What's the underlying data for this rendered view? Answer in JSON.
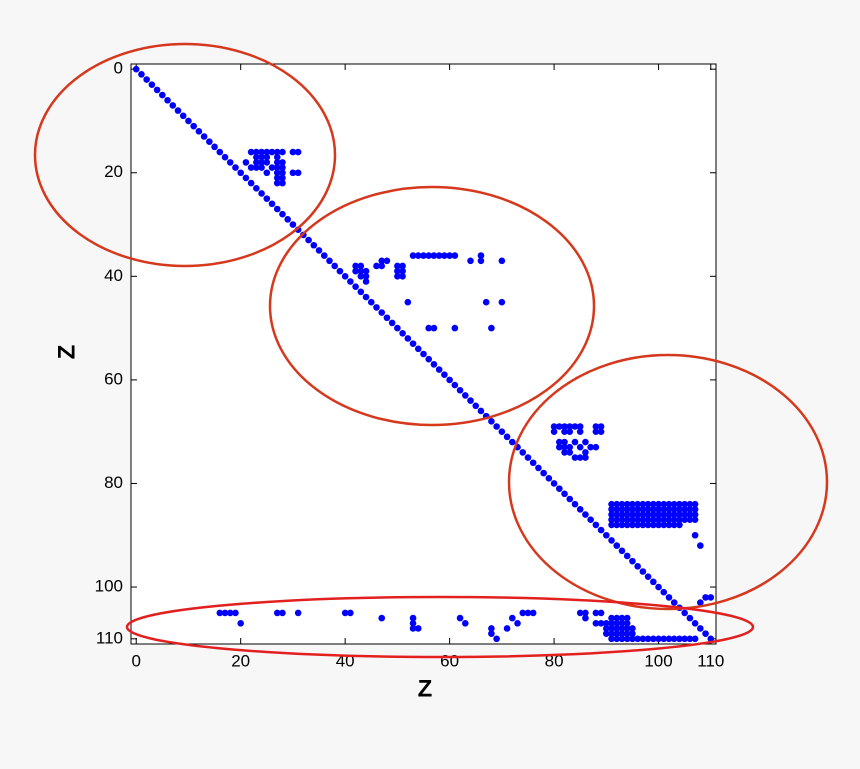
{
  "chart_data": {
    "type": "scatter",
    "xlabel": "Z",
    "ylabel": "Z",
    "color": "#0000ff",
    "xlim": [
      -1,
      111
    ],
    "ylim": [
      -1,
      111
    ],
    "y_reversed": true,
    "xticks": [
      0,
      20,
      40,
      60,
      80,
      100,
      110
    ],
    "yticks": [
      0,
      20,
      40,
      60,
      80,
      100,
      110
    ],
    "x": [
      0,
      1,
      2,
      3,
      4,
      5,
      6,
      7,
      8,
      9,
      10,
      11,
      12,
      13,
      14,
      15,
      16,
      17,
      18,
      19,
      20,
      21,
      22,
      23,
      24,
      25,
      26,
      27,
      28,
      29,
      30,
      31,
      32,
      33,
      34,
      35,
      36,
      37,
      38,
      39,
      40,
      41,
      42,
      43,
      44,
      45,
      46,
      47,
      48,
      49,
      50,
      51,
      52,
      53,
      54,
      55,
      56,
      57,
      58,
      59,
      60,
      61,
      62,
      63,
      64,
      65,
      66,
      67,
      68,
      69,
      70,
      71,
      72,
      73,
      74,
      75,
      76,
      77,
      78,
      79,
      80,
      81,
      82,
      83,
      84,
      85,
      86,
      87,
      88,
      89,
      90,
      91,
      92,
      93,
      94,
      95,
      96,
      97,
      98,
      99,
      100,
      101,
      102,
      103,
      104,
      105,
      106,
      107,
      108,
      109,
      110,
      22,
      23,
      24,
      25,
      26,
      27,
      28,
      30,
      31,
      23,
      24,
      25,
      27,
      21,
      23,
      24,
      25,
      27,
      28,
      22,
      23,
      24,
      26,
      27,
      28,
      25,
      27,
      28,
      30,
      31,
      27,
      28,
      27,
      28,
      53,
      54,
      55,
      56,
      57,
      58,
      59,
      60,
      61,
      66,
      47,
      48,
      64,
      66,
      70,
      42,
      43,
      46,
      47,
      50,
      51,
      42,
      43,
      44,
      50,
      51,
      43,
      44,
      50,
      51,
      44,
      52,
      67,
      70,
      56,
      57,
      61,
      68,
      80,
      81,
      82,
      83,
      84,
      85,
      88,
      89,
      80,
      82,
      83,
      85,
      88,
      89,
      81,
      82,
      84,
      86,
      81,
      82,
      83,
      85,
      87,
      88,
      82,
      83,
      86,
      84,
      85,
      86,
      91,
      92,
      93,
      94,
      95,
      96,
      97,
      98,
      99,
      100,
      101,
      102,
      103,
      104,
      105,
      106,
      107,
      91,
      92,
      93,
      94,
      95,
      96,
      97,
      98,
      99,
      100,
      101,
      102,
      103,
      104,
      105,
      106,
      107,
      91,
      92,
      93,
      94,
      95,
      96,
      97,
      98,
      99,
      100,
      101,
      102,
      103,
      104,
      105,
      106,
      107,
      91,
      92,
      93,
      94,
      95,
      96,
      97,
      98,
      99,
      100,
      101,
      102,
      103,
      104,
      105,
      106,
      107,
      91,
      92,
      93,
      94,
      95,
      96,
      97,
      98,
      99,
      100,
      101,
      102,
      103,
      104,
      107,
      108,
      109,
      110,
      108,
      16,
      17,
      18,
      19,
      27,
      28,
      31,
      40,
      41,
      74,
      75,
      76,
      85,
      86,
      88,
      89,
      47,
      53,
      62,
      72,
      86,
      91,
      92,
      93,
      94,
      20,
      53,
      63,
      73,
      88,
      89,
      90,
      91,
      92,
      93,
      94,
      53,
      54,
      68,
      71,
      90,
      91,
      92,
      93,
      94,
      95,
      68,
      90,
      91,
      92,
      93,
      94,
      95,
      69,
      91,
      92,
      93,
      94,
      95,
      96,
      97,
      98,
      99,
      100,
      101,
      102,
      103,
      104,
      105,
      106,
      107
    ],
    "values": [
      0,
      1,
      2,
      3,
      4,
      5,
      6,
      7,
      8,
      9,
      10,
      11,
      12,
      13,
      14,
      15,
      16,
      17,
      18,
      19,
      20,
      21,
      22,
      23,
      24,
      25,
      26,
      27,
      28,
      29,
      30,
      31,
      32,
      33,
      34,
      35,
      36,
      37,
      38,
      39,
      40,
      41,
      42,
      43,
      44,
      45,
      46,
      47,
      48,
      49,
      50,
      51,
      52,
      53,
      54,
      55,
      56,
      57,
      58,
      59,
      60,
      61,
      62,
      63,
      64,
      65,
      66,
      67,
      68,
      69,
      70,
      71,
      72,
      73,
      74,
      75,
      76,
      77,
      78,
      79,
      80,
      81,
      82,
      83,
      84,
      85,
      86,
      87,
      88,
      89,
      90,
      91,
      92,
      93,
      94,
      95,
      96,
      97,
      98,
      99,
      100,
      101,
      102,
      103,
      104,
      105,
      106,
      107,
      108,
      109,
      110,
      16,
      16,
      16,
      16,
      16,
      16,
      16,
      16,
      16,
      17,
      17,
      17,
      17,
      18,
      18,
      18,
      18,
      18,
      18,
      19,
      19,
      19,
      19,
      19,
      19,
      20,
      20,
      20,
      20,
      20,
      21,
      21,
      22,
      22,
      36,
      36,
      36,
      36,
      36,
      36,
      36,
      36,
      36,
      36,
      37,
      37,
      37,
      37,
      37,
      38,
      38,
      38,
      38,
      38,
      38,
      39,
      39,
      39,
      39,
      39,
      40,
      40,
      40,
      40,
      41,
      45,
      45,
      45,
      50,
      50,
      50,
      50,
      69,
      69,
      69,
      69,
      69,
      69,
      69,
      69,
      70,
      70,
      70,
      70,
      70,
      70,
      72,
      72,
      72,
      72,
      73,
      73,
      73,
      73,
      73,
      73,
      74,
      74,
      74,
      75,
      75,
      75,
      84,
      84,
      84,
      84,
      84,
      84,
      84,
      84,
      84,
      84,
      84,
      84,
      84,
      84,
      84,
      84,
      84,
      85,
      85,
      85,
      85,
      85,
      85,
      85,
      85,
      85,
      85,
      85,
      85,
      85,
      85,
      85,
      85,
      85,
      86,
      86,
      86,
      86,
      86,
      86,
      86,
      86,
      86,
      86,
      86,
      86,
      86,
      86,
      86,
      86,
      86,
      87,
      87,
      87,
      87,
      87,
      87,
      87,
      87,
      87,
      87,
      87,
      87,
      87,
      87,
      87,
      87,
      87,
      88,
      88,
      88,
      88,
      88,
      88,
      88,
      88,
      88,
      88,
      88,
      88,
      88,
      88,
      90,
      92,
      102,
      102,
      103,
      105,
      105,
      105,
      105,
      105,
      105,
      105,
      105,
      105,
      105,
      105,
      105,
      105,
      105,
      105,
      105,
      106,
      106,
      106,
      106,
      106,
      106,
      106,
      106,
      106,
      107,
      107,
      107,
      107,
      107,
      107,
      107,
      107,
      107,
      107,
      107,
      108,
      108,
      108,
      108,
      108,
      108,
      108,
      108,
      108,
      108,
      109,
      109,
      109,
      109,
      109,
      109,
      109,
      110,
      110,
      110,
      110,
      110,
      110,
      110,
      110,
      110,
      110,
      110,
      110,
      110,
      110,
      110,
      110,
      110,
      110
    ]
  }
}
